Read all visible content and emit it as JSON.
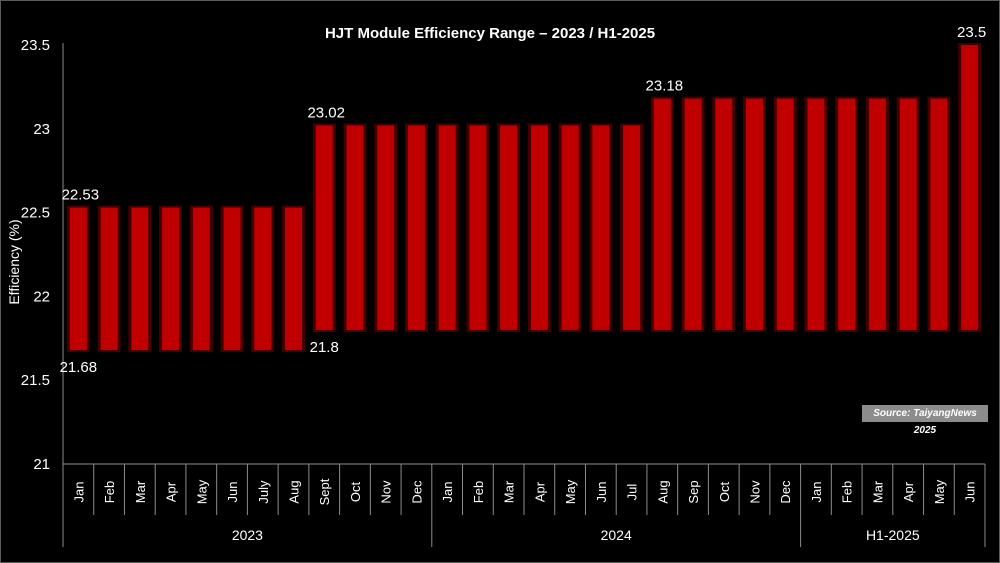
{
  "chart_data": {
    "type": "bar",
    "subtype": "floating-range",
    "title": "HJT Module Efficiency Range – 2023 / H1-2025",
    "ylabel": "Efficiency (%)",
    "xlabel": "",
    "ylim": [
      21,
      23.5
    ],
    "yticks": [
      "21",
      "21.5",
      "22",
      "22.5",
      "23",
      "23.5"
    ],
    "categories": [
      "Jan",
      "Feb",
      "Mar",
      "Apr",
      "May",
      "Jun",
      "July",
      "Aug",
      "Sept",
      "Oct",
      "Nov",
      "Dec",
      "Jan",
      "Feb",
      "Mar",
      "Apr",
      "May",
      "Jun",
      "Jul",
      "Aug",
      "Sep",
      "Oct",
      "Nov",
      "Dec",
      "Jan",
      "Feb",
      "Mar",
      "Apr",
      "May",
      "Jun"
    ],
    "groups": [
      {
        "label": "2023",
        "count": 12
      },
      {
        "label": "2024",
        "count": 12
      },
      {
        "label": "H1-2025",
        "count": 6
      }
    ],
    "series": [
      {
        "values_low": [
          21.68,
          21.68,
          21.68,
          21.68,
          21.68,
          21.68,
          21.68,
          21.68,
          21.8,
          21.8,
          21.8,
          21.8,
          21.8,
          21.8,
          21.8,
          21.8,
          21.8,
          21.8,
          21.8,
          21.8,
          21.8,
          21.8,
          21.8,
          21.8,
          21.8,
          21.8,
          21.8,
          21.8,
          21.8,
          21.8
        ],
        "values_high": [
          22.53,
          22.53,
          22.53,
          22.53,
          22.53,
          22.53,
          22.53,
          22.53,
          23.02,
          23.02,
          23.02,
          23.02,
          23.02,
          23.02,
          23.02,
          23.02,
          23.02,
          23.02,
          23.02,
          23.18,
          23.18,
          23.18,
          23.18,
          23.18,
          23.18,
          23.18,
          23.18,
          23.18,
          23.18,
          23.5
        ]
      }
    ],
    "data_labels": [
      {
        "index": 0,
        "end": "high",
        "text": "22.53"
      },
      {
        "index": 0,
        "end": "low",
        "text": "21.68"
      },
      {
        "index": 8,
        "end": "high",
        "text": "23.02"
      },
      {
        "index": 8,
        "end": "low",
        "text": "21.8"
      },
      {
        "index": 19,
        "end": "high",
        "text": "23.18"
      },
      {
        "index": 29,
        "end": "high",
        "text": "23.5"
      }
    ],
    "colors": {
      "bar": "#c00000",
      "bar_edge": "#7a0000",
      "background": "#000000",
      "text": "#ffffff",
      "axis": "#8c8c8c"
    },
    "grid": false,
    "legend": "none"
  },
  "source": "Source: TaiyangNews 2025"
}
